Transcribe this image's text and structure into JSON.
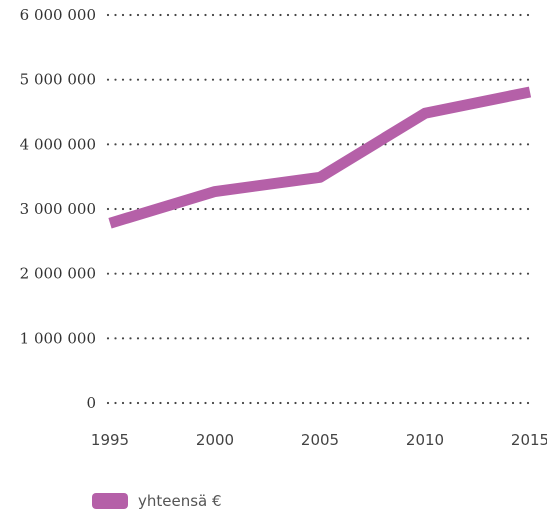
{
  "chart_data": {
    "type": "line",
    "x": [
      1995,
      2000,
      2005,
      2010,
      2015
    ],
    "xticks": [
      "1995",
      "2000",
      "2005",
      "2010",
      "2015"
    ],
    "yticks": [
      "0",
      "1 000 000",
      "2 000 000",
      "3 000 000",
      "4 000 000",
      "5 000 000",
      "6 000 000"
    ],
    "ylim": [
      0,
      6000000
    ],
    "grid": "dotted horizontal",
    "legend_position": "bottom-left",
    "series": [
      {
        "name": "yhteensä €",
        "color": "#b560a8",
        "values": [
          2780000,
          3270000,
          3490000,
          4480000,
          4810000
        ]
      }
    ]
  }
}
